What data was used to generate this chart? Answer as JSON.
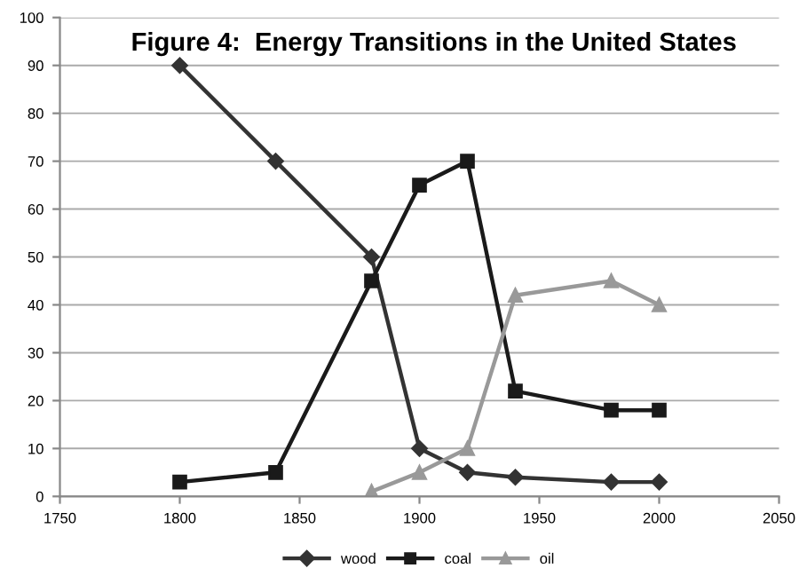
{
  "chart_data": {
    "type": "line",
    "title": "Figure 4:  Energy Transitions in the United States",
    "xlim": [
      1750,
      2050
    ],
    "xticks": [
      1750,
      1800,
      1850,
      1900,
      1950,
      2000,
      2050
    ],
    "ylim": [
      0,
      100
    ],
    "yticks": [
      0,
      10,
      20,
      30,
      40,
      50,
      60,
      70,
      80,
      90,
      100
    ],
    "grid": "y",
    "legend": "bottom",
    "series": [
      {
        "name": "wood",
        "color": "#333333",
        "marker": "diamond",
        "x": [
          1800,
          1840,
          1880,
          1900,
          1920,
          1940,
          1980,
          2000
        ],
        "values": [
          90,
          70,
          50,
          10,
          5,
          4,
          3,
          3
        ]
      },
      {
        "name": "coal",
        "color": "#1a1a1a",
        "marker": "square",
        "x": [
          1800,
          1840,
          1880,
          1900,
          1920,
          1940,
          1980,
          2000
        ],
        "values": [
          3,
          5,
          45,
          65,
          70,
          22,
          18,
          18
        ]
      },
      {
        "name": "oil",
        "color": "#999999",
        "marker": "triangle",
        "x": [
          1880,
          1900,
          1920,
          1940,
          1980,
          2000
        ],
        "values": [
          1,
          5,
          10,
          42,
          45,
          40
        ]
      }
    ]
  }
}
